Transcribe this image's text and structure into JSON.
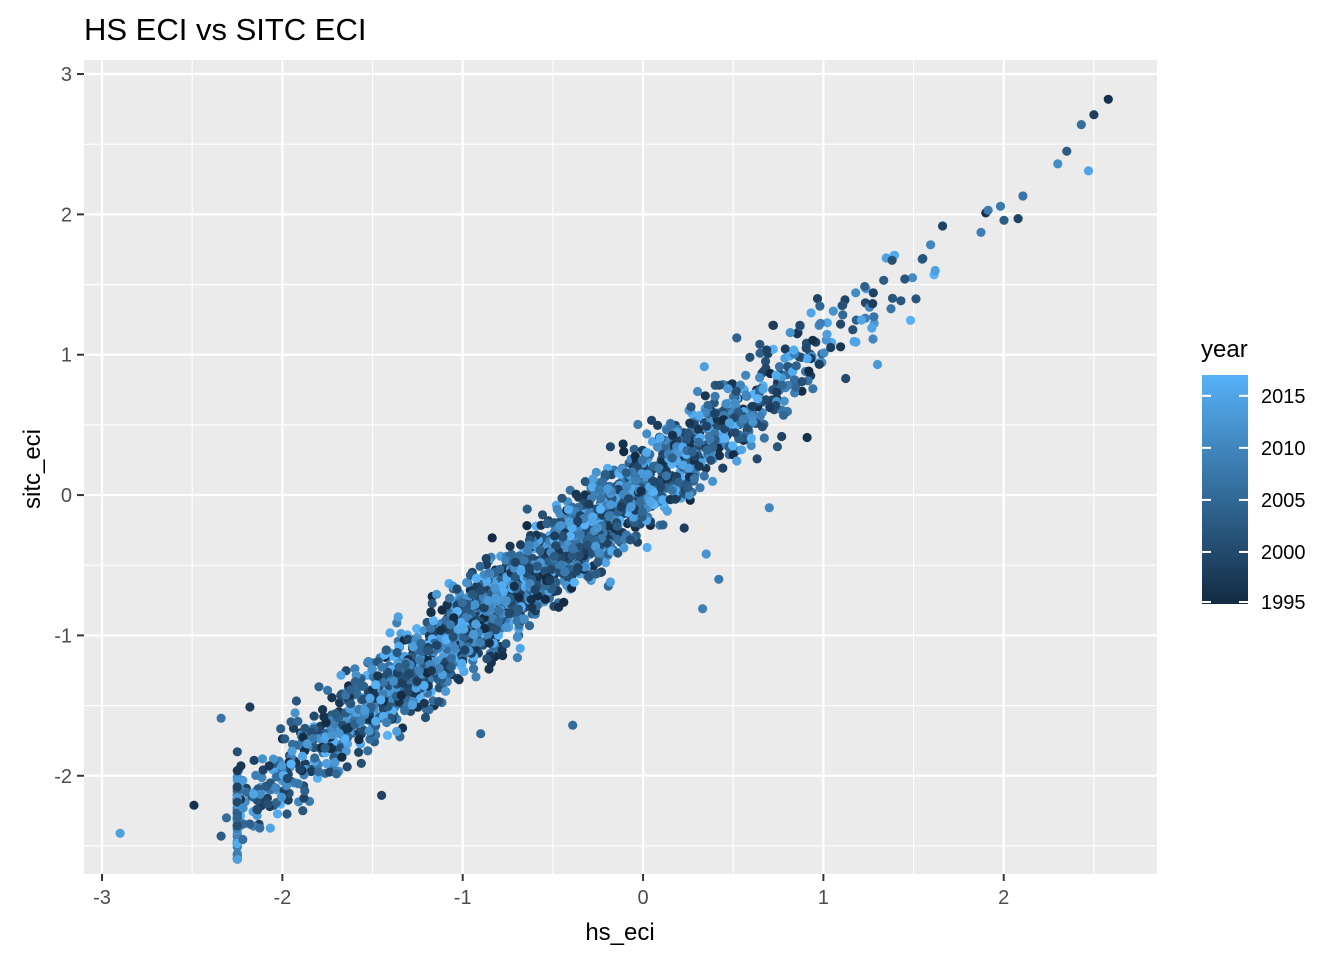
{
  "chart_data": {
    "type": "scatter",
    "title": "HS ECI vs SITC ECI",
    "xlabel": "hs_eci",
    "ylabel": "sitc_eci",
    "xlim": [
      -3.1,
      2.85
    ],
    "ylim": [
      -2.7,
      3.1
    ],
    "x_ticks": [
      -3,
      -2,
      -1,
      0,
      1,
      2
    ],
    "x_tick_labels": [
      "-3",
      "-2",
      "-1",
      "0",
      "1",
      "2"
    ],
    "y_ticks": [
      -2,
      -1,
      0,
      1,
      2,
      3
    ],
    "y_tick_labels": [
      "-2",
      "-1",
      "0",
      "1",
      "2",
      "3"
    ],
    "grid": true,
    "color_by": "year",
    "color_range": [
      1995,
      2017
    ],
    "color_low": "#132B43",
    "color_high": "#56B1F7",
    "legend": {
      "title": "year",
      "placement": "right",
      "breaks": [
        1995,
        2000,
        2005,
        2010,
        2015
      ],
      "break_labels": [
        "1995",
        "2000",
        "2005",
        "2010",
        "2015"
      ]
    },
    "trend": {
      "slope": 1.02,
      "intercept": 0.05,
      "spread": 0.16
    },
    "points": [
      {
        "x": -2.9,
        "y": -2.41,
        "year": 2014
      },
      {
        "x": -2.49,
        "y": -2.21,
        "year": 1996
      },
      {
        "x": -2.34,
        "y": -2.43,
        "year": 2003
      },
      {
        "x": -2.31,
        "y": -2.3,
        "year": 2006
      },
      {
        "x": -2.34,
        "y": -1.59,
        "year": 2007
      },
      {
        "x": -2.23,
        "y": -1.93,
        "year": 1997
      },
      {
        "x": -2.18,
        "y": -1.51,
        "year": 1998
      },
      {
        "x": -2.16,
        "y": -2.13,
        "year": 2015
      },
      {
        "x": -2.08,
        "y": -2.2,
        "year": 2001
      },
      {
        "x": -2.11,
        "y": -1.88,
        "year": 2012
      },
      {
        "x": -1.45,
        "y": -2.14,
        "year": 1999
      },
      {
        "x": -0.9,
        "y": -1.7,
        "year": 2005
      },
      {
        "x": -0.39,
        "y": -1.64,
        "year": 2006
      },
      {
        "x": 0.33,
        "y": -0.81,
        "year": 2009
      },
      {
        "x": 0.42,
        "y": -0.6,
        "year": 2008
      },
      {
        "x": 0.35,
        "y": -0.42,
        "year": 2012
      },
      {
        "x": 0.7,
        "y": -0.09,
        "year": 2010
      },
      {
        "x": 0.52,
        "y": 1.12,
        "year": 2004
      },
      {
        "x": 0.72,
        "y": 1.21,
        "year": 1998
      },
      {
        "x": 0.87,
        "y": 1.21,
        "year": 2000
      },
      {
        "x": 1.3,
        "y": 0.93,
        "year": 2013
      },
      {
        "x": 0.91,
        "y": 0.41,
        "year": 1996
      },
      {
        "x": 2.58,
        "y": 2.82,
        "year": 1996
      },
      {
        "x": 2.5,
        "y": 2.71,
        "year": 1998
      },
      {
        "x": 2.43,
        "y": 2.64,
        "year": 2006
      },
      {
        "x": 2.35,
        "y": 2.45,
        "year": 2003
      },
      {
        "x": 2.47,
        "y": 2.31,
        "year": 2015
      },
      {
        "x": 2.3,
        "y": 2.36,
        "year": 2011
      },
      {
        "x": 2.08,
        "y": 1.97,
        "year": 1999
      },
      {
        "x": 1.62,
        "y": 1.6,
        "year": 2014
      }
    ]
  }
}
